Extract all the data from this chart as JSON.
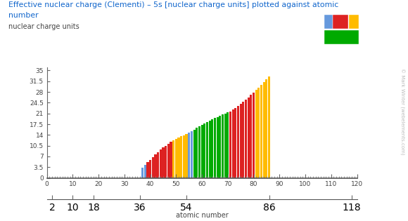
{
  "title_line1": "Effective nuclear charge (Clementi) – 5s [nuclear charge units] plotted against atomic",
  "title_line2": "number",
  "ylabel": "nuclear charge units",
  "xlabel": "atomic number",
  "background_color": "#ffffff",
  "title_color": "#1166cc",
  "xlim": [
    0,
    120
  ],
  "ylim": [
    0,
    36
  ],
  "yticks": [
    0,
    3.5,
    7,
    10.5,
    14,
    17.5,
    21,
    24.5,
    28,
    31.5,
    35
  ],
  "xticks_major": [
    0,
    10,
    20,
    30,
    40,
    50,
    60,
    70,
    80,
    90,
    100,
    110,
    120
  ],
  "xticks_period": [
    2,
    10,
    18,
    36,
    54,
    86,
    118
  ],
  "watermark": "© Mark Winter (webelements.com)",
  "zeff_5s": {
    "37": 3.31,
    "38": 4.21,
    "39": 5.07,
    "40": 5.9,
    "41": 6.76,
    "42": 7.63,
    "43": 8.45,
    "44": 9.22,
    "45": 9.95,
    "46": 10.52,
    "47": 11.18,
    "48": 11.88,
    "49": 12.28,
    "50": 12.72,
    "51": 13.12,
    "52": 13.51,
    "53": 13.93,
    "54": 14.36,
    "55": 14.79,
    "56": 15.24,
    "57": 15.73,
    "58": 16.26,
    "59": 16.78,
    "60": 17.28,
    "61": 17.76,
    "62": 18.22,
    "63": 18.66,
    "64": 19.07,
    "65": 19.46,
    "66": 19.84,
    "67": 20.22,
    "68": 20.6,
    "69": 20.97,
    "70": 21.33,
    "71": 21.69,
    "72": 22.2,
    "73": 22.83,
    "74": 23.48,
    "75": 24.16,
    "76": 24.86,
    "77": 25.57,
    "78": 26.3,
    "79": 27.04,
    "80": 27.81,
    "81": 28.63,
    "82": 29.47,
    "83": 30.32,
    "84": 31.18,
    "85": 32.06,
    "86": 32.95
  },
  "block_colors": {
    "s": "#6699dd",
    "d": "#dd2222",
    "f": "#00aa00",
    "p": "#ffbb00"
  },
  "s_block": [
    37,
    38,
    55,
    56
  ],
  "d_block": [
    39,
    40,
    41,
    42,
    43,
    44,
    45,
    46,
    47,
    48,
    71,
    72,
    73,
    74,
    75,
    76,
    77,
    78,
    79,
    80
  ],
  "f_block": [
    57,
    58,
    59,
    60,
    61,
    62,
    63,
    64,
    65,
    66,
    67,
    68,
    69,
    70
  ],
  "p_block": [
    49,
    50,
    51,
    52,
    53,
    54,
    81,
    82,
    83,
    84,
    85,
    86
  ]
}
